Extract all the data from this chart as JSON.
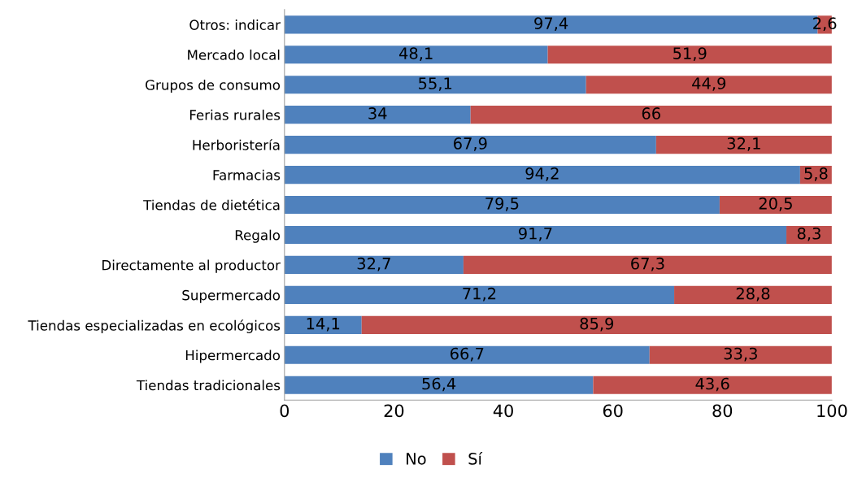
{
  "chart_data": {
    "type": "bar",
    "orientation": "horizontal",
    "stacked": true,
    "categories": [
      "Otros: indicar",
      "Mercado local",
      "Grupos de consumo",
      "Ferias rurales",
      "Herboristería",
      "Farmacias",
      "Tiendas de dietética",
      "Regalo",
      "Directamente al productor",
      "Supermercado",
      "Tiendas especializadas en ecológicos",
      "Hipermercado",
      "Tiendas tradicionales"
    ],
    "series": [
      {
        "name": "No",
        "color": "#4f81bd",
        "values": [
          97.4,
          48.1,
          55.1,
          34,
          67.9,
          94.2,
          79.5,
          91.7,
          32.7,
          71.2,
          14.1,
          66.7,
          56.4
        ],
        "value_labels": [
          "97,4",
          "48,1",
          "55,1",
          "34",
          "67,9",
          "94,2",
          "79,5",
          "91,7",
          "32,7",
          "71,2",
          "14,1",
          "66,7",
          "56,4"
        ]
      },
      {
        "name": "Sí",
        "color": "#c0504d",
        "values": [
          2.6,
          51.9,
          44.9,
          66,
          32.1,
          5.8,
          20.5,
          8.3,
          67.3,
          28.8,
          85.9,
          33.3,
          43.6
        ],
        "value_labels": [
          "2,6",
          "51,9",
          "44,9",
          "66",
          "32,1",
          "5,8",
          "20,5",
          "8,3",
          "67,3",
          "28,8",
          "85,9",
          "33,3",
          "43,6"
        ]
      }
    ],
    "xlim": [
      0,
      100
    ],
    "xticks": [
      0,
      20,
      40,
      60,
      80,
      100
    ],
    "grid": false,
    "legend": "bottom"
  }
}
